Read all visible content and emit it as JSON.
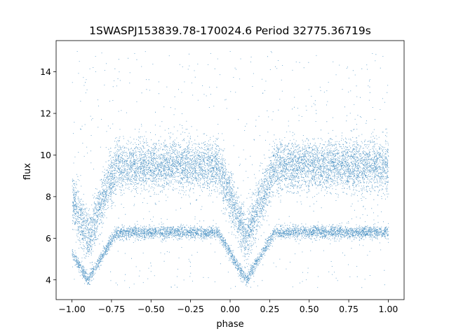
{
  "chart_data": {
    "type": "scatter",
    "title": "1SWASPJ153839.78-170024.6 Period 32775.36719s",
    "xlabel": "phase",
    "ylabel": "flux",
    "xlim": [
      -1.1,
      1.1
    ],
    "ylim": [
      3.05,
      15.5
    ],
    "x_ticks": [
      -1.0,
      -0.75,
      -0.5,
      -0.25,
      0.0,
      0.25,
      0.5,
      0.75,
      1.0
    ],
    "x_tick_labels": [
      "−1.00",
      "−0.75",
      "−0.50",
      "−0.25",
      "0.00",
      "0.25",
      "0.50",
      "0.75",
      "1.00"
    ],
    "y_ticks": [
      4,
      6,
      8,
      10,
      12,
      14
    ],
    "y_tick_labels": [
      "4",
      "6",
      "8",
      "10",
      "12",
      "14"
    ],
    "grid": false,
    "legend": "none",
    "point_color": "#1f77b4",
    "x_range_of_points": [
      -1.0,
      1.0
    ],
    "components": [
      {
        "baseline_flux": 9.5,
        "scatter": 0.6,
        "eclipse_centers": [
          -0.9,
          0.1
        ],
        "eclipse_min_flux": 6.0,
        "eclipse_half_width": 0.18
      },
      {
        "baseline_flux": 6.3,
        "scatter": 0.15,
        "eclipse_centers": [
          -0.9,
          0.1
        ],
        "eclipse_min_flux": 4.0,
        "eclipse_half_width": 0.18
      },
      {
        "type": "outliers",
        "flux_range": [
          3.6,
          15.0
        ]
      }
    ]
  }
}
